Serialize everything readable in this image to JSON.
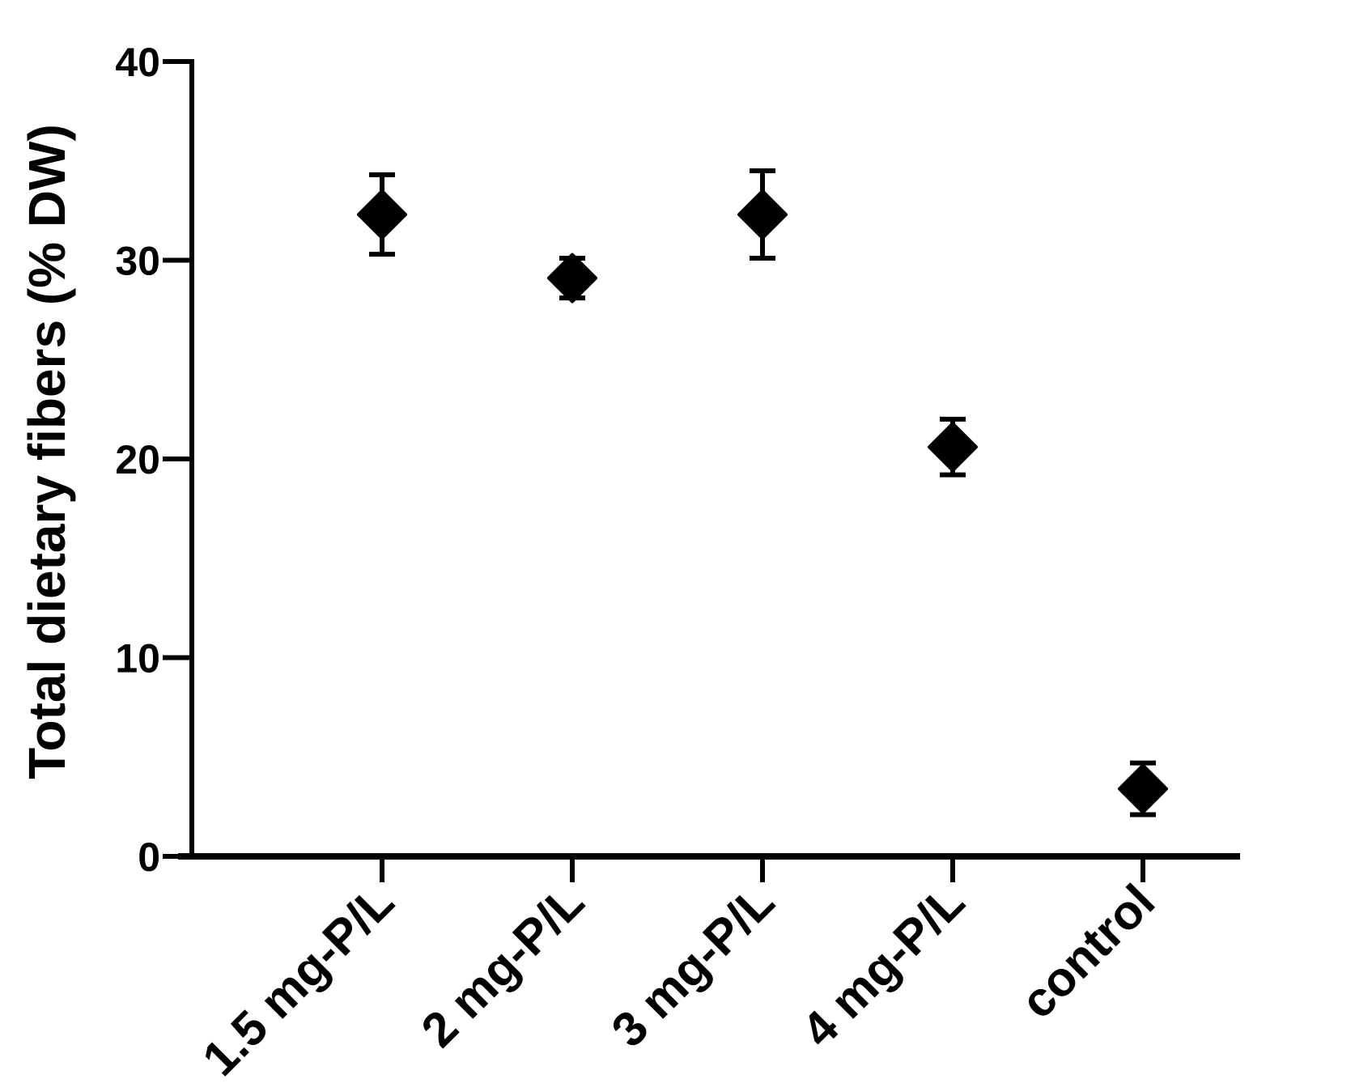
{
  "chart_data": {
    "type": "scatter",
    "title": "",
    "xlabel": "",
    "ylabel": "Total dietary fibers (% DW)",
    "ylim": [
      0,
      40
    ],
    "yticks": [
      0,
      10,
      20,
      30,
      40
    ],
    "categories": [
      "1.5 mg-P/L",
      "2 mg-P/L",
      "3 mg-P/L",
      "4 mg-P/L",
      "control"
    ],
    "series": [
      {
        "name": "Total dietary fibers",
        "values": [
          32.3,
          29.1,
          32.3,
          20.6,
          3.4
        ],
        "errors": [
          2.0,
          1.0,
          2.2,
          1.4,
          1.3
        ],
        "marker": "diamond",
        "color": "#000000"
      }
    ],
    "grid": false,
    "legend": false,
    "axis_color": "#000000",
    "background_color": "#ffffff"
  }
}
